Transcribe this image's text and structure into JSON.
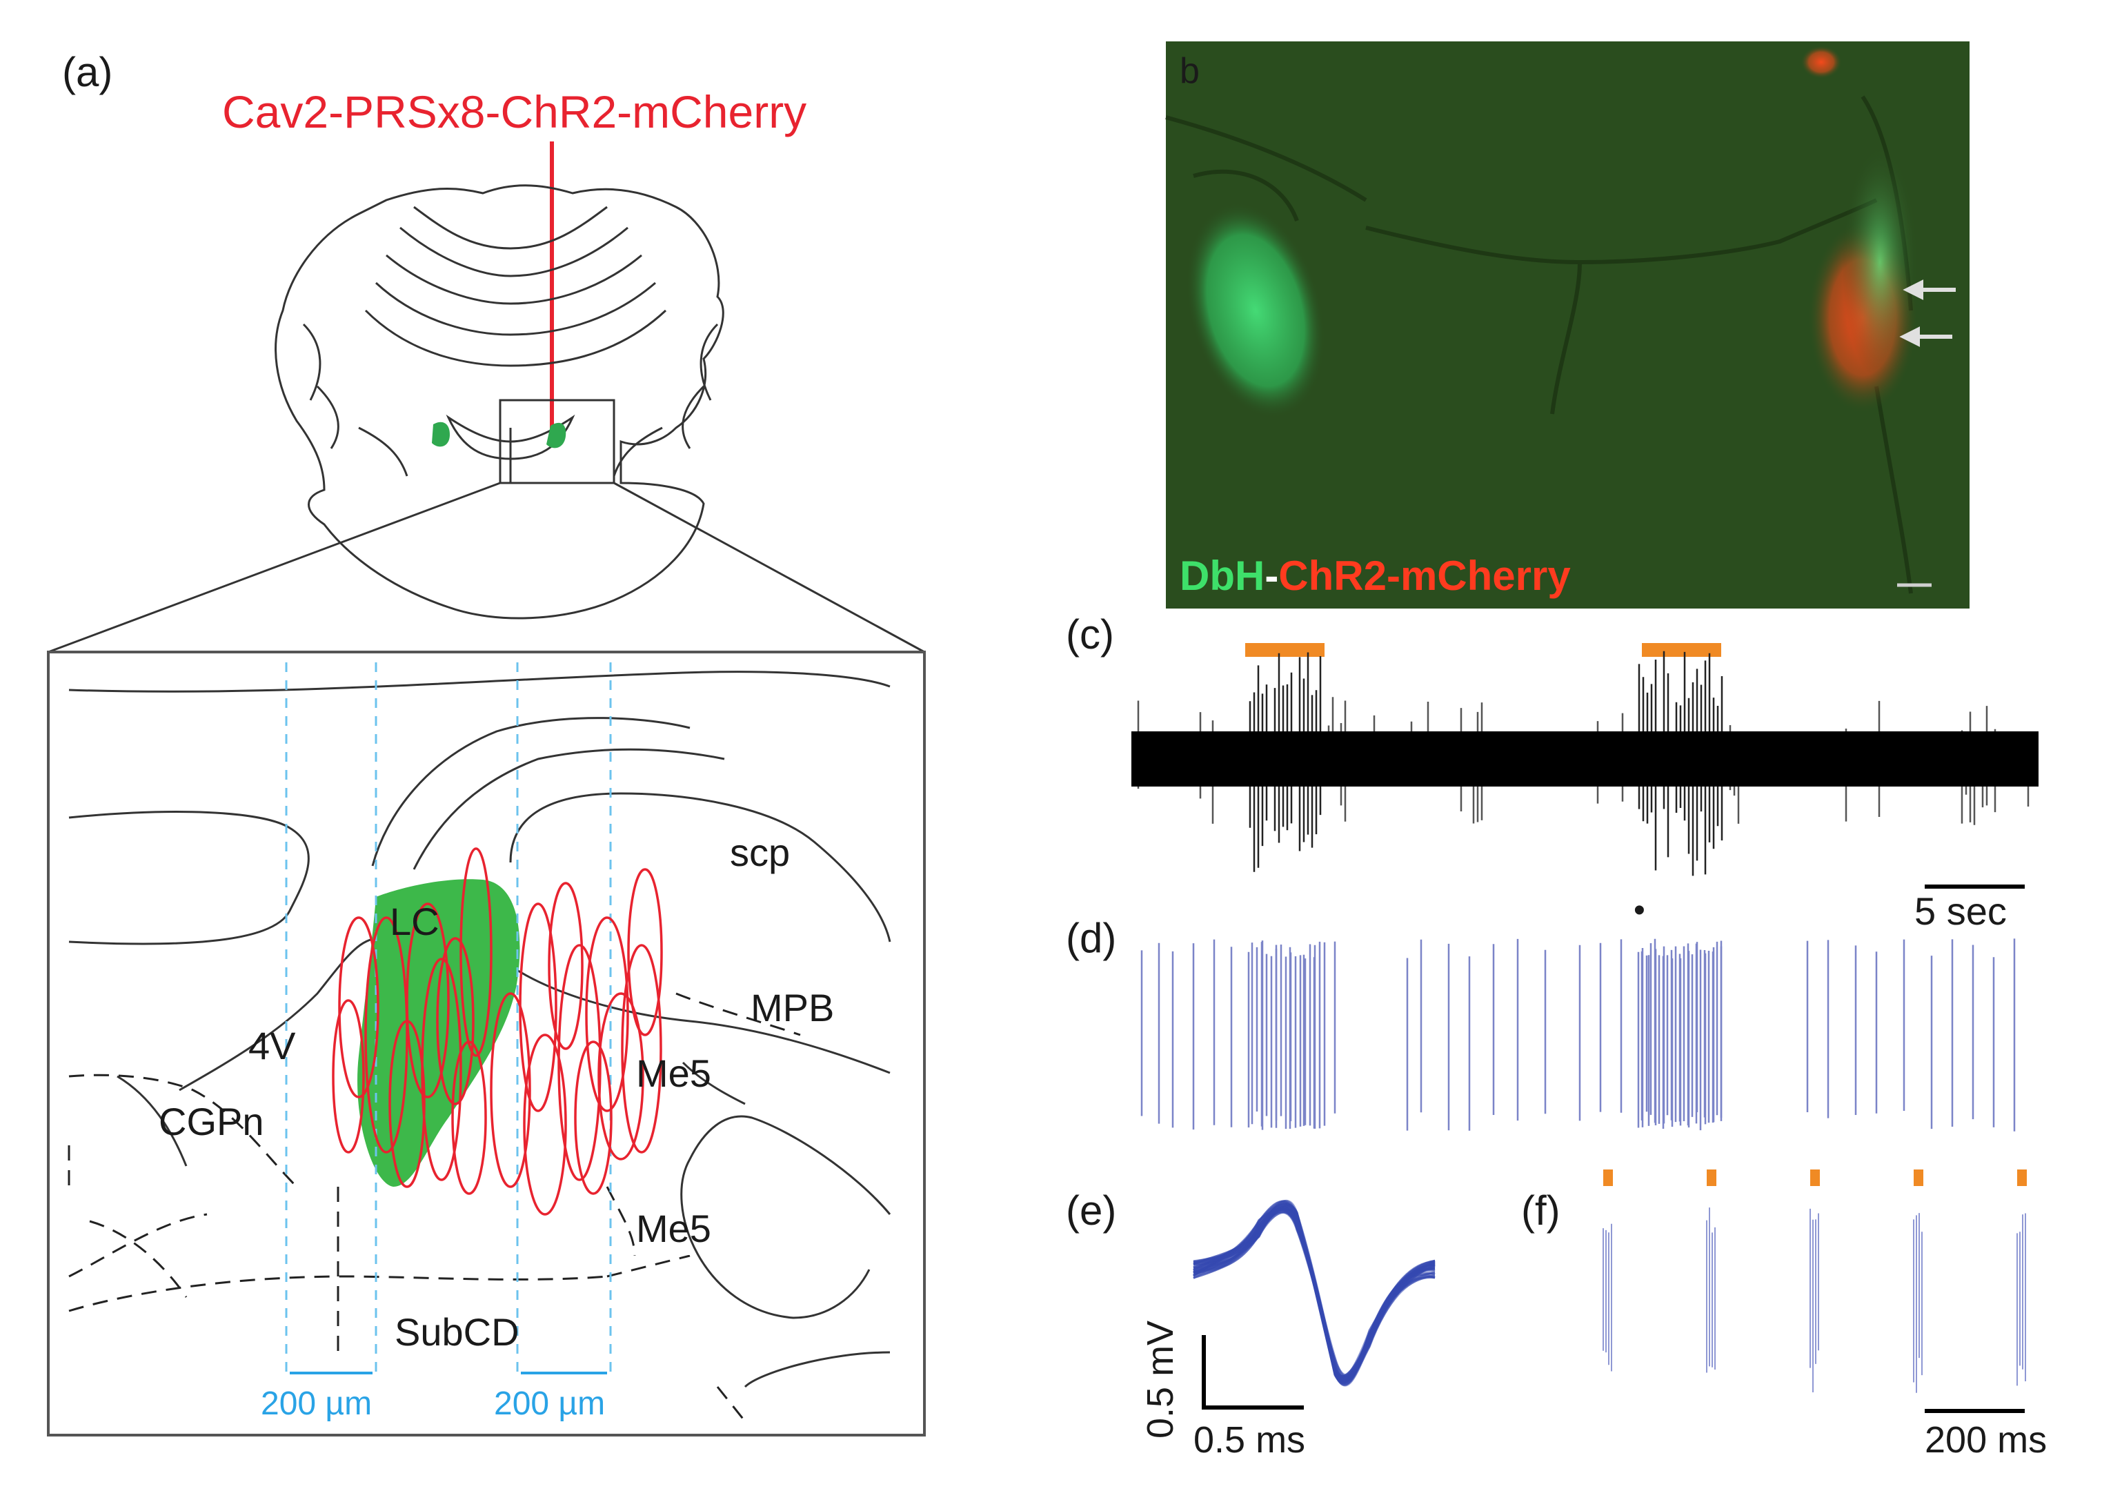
{
  "panel_a": {
    "label": "(a)",
    "virus_label": "Cav2-PRSx8-ChR2-mCherry",
    "regions": {
      "scp": "scp",
      "lc": "LC",
      "mpb": "MPB",
      "v4": "4V",
      "me5_upper": "Me5",
      "cgpn": "CGPn",
      "me5_lower": "Me5",
      "subcd": "SubCD"
    },
    "scale_left": "200 µm",
    "scale_right": "200 µm",
    "colors": {
      "virus": "#e8232f",
      "lc_fill": "#3db84a",
      "scale": "#29a3e6"
    }
  },
  "panel_b": {
    "label": "b",
    "stain_green": "DbH",
    "stain_dash": "-",
    "stain_red": "ChR2-mCherry",
    "colors": {
      "background": "#2a4d1e",
      "green": "#3ee06a",
      "red": "#ff3b1f"
    }
  },
  "panel_c": {
    "label": "(c)",
    "scale": "5 sec",
    "colors": {
      "stim": "#f08a24",
      "trace": "#000000"
    }
  },
  "panel_d": {
    "label": "(d)",
    "marker": "•",
    "colors": {
      "spikes": "#7b84c8"
    }
  },
  "panel_e": {
    "label": "(e)",
    "y_scale": "0.5 mV",
    "x_scale": "0.5 ms",
    "colors": {
      "waveform": "#3448b0"
    }
  },
  "panel_f": {
    "label": "(f)",
    "scale": "200 ms",
    "colors": {
      "stim": "#f08a24",
      "spikes": "#8f98d4"
    }
  }
}
